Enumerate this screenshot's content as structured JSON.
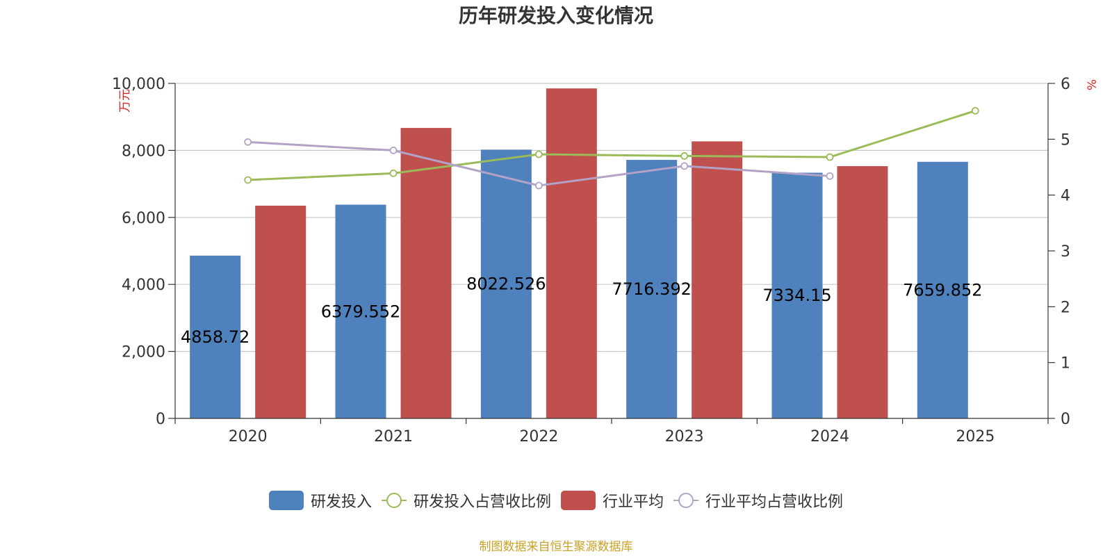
{
  "chart_data": {
    "type": "bar",
    "title": "历年研发投入变化情况",
    "categories": [
      "2020",
      "2021",
      "2022",
      "2023",
      "2024",
      "2025"
    ],
    "y_left": {
      "label": "万元",
      "ticks": [
        "0",
        "2,000",
        "4,000",
        "6,000",
        "8,000",
        "10,000"
      ],
      "range": [
        0,
        10000
      ]
    },
    "y_right": {
      "label": "%",
      "ticks": [
        "0",
        "1",
        "2",
        "3",
        "4",
        "5",
        "6"
      ],
      "range": [
        0,
        6
      ]
    },
    "grid": true,
    "legend_position": "bottom",
    "series": [
      {
        "name": "研发投入",
        "type": "bar",
        "axis": "left",
        "color": "#4f81bd",
        "values": [
          4858.72,
          6379.552,
          8022.526,
          7716.392,
          7334.15,
          7659.852
        ],
        "labels": [
          "4858.72",
          "6379.552",
          "8022.526",
          "7716.392",
          "7334.15",
          "7659.852"
        ]
      },
      {
        "name": "研发投入占营收比例",
        "type": "line",
        "axis": "right",
        "color": "#9bbb59",
        "values": [
          4.27,
          4.39,
          4.73,
          4.7,
          4.68,
          5.51
        ]
      },
      {
        "name": "行业平均",
        "type": "bar",
        "axis": "left",
        "color": "#c0504d",
        "values": [
          6350,
          8670,
          9850,
          8270,
          7530,
          null
        ]
      },
      {
        "name": "行业平均占营收比例",
        "type": "line",
        "axis": "right",
        "color": "#b3a2c7",
        "values": [
          4.95,
          4.8,
          4.17,
          4.52,
          4.34,
          null
        ]
      }
    ]
  },
  "source_text": "制图数据来自恒生聚源数据库"
}
